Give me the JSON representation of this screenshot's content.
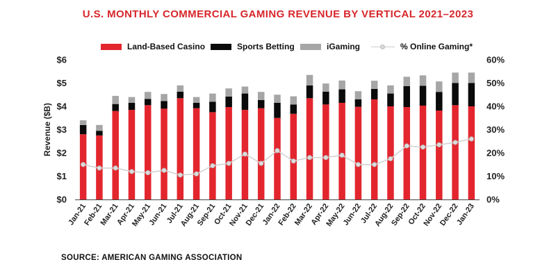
{
  "title": "U.S. MONTHLY COMMERCIAL GAMING REVENUE BY VERTICAL 2021–2023",
  "source": "SOURCE: AMERICAN GAMING ASSOCIATION",
  "colors": {
    "land_based": "#e3262e",
    "sports_betting": "#0a0a0a",
    "igaming": "#a6a6a6",
    "online_line": "#d3d3d3",
    "title": "#d7262b"
  },
  "chart_data": {
    "type": "bar",
    "stacked": true,
    "title": "U.S. MONTHLY COMMERCIAL GAMING REVENUE BY VERTICAL 2021–2023",
    "ylabel": "Revenue ($B)",
    "ylim": [
      0,
      6
    ],
    "y_ticks": [
      "$0",
      "$1",
      "$2",
      "$3",
      "$4",
      "$5",
      "$6"
    ],
    "y2lim": [
      0,
      60
    ],
    "y2_ticks": [
      "0%",
      "10%",
      "20%",
      "30%",
      "40%",
      "50%",
      "60%"
    ],
    "grid": false,
    "legend": "top",
    "categories": [
      "Jan-21",
      "Feb-21",
      "Mar-21",
      "Apr-21",
      "May-21",
      "Jun-21",
      "Jul-21",
      "Aug-21",
      "Sep-21",
      "Oct-21",
      "Nov-21",
      "Dec-21",
      "Jan-22",
      "Feb-22",
      "Mar-22",
      "Apr-22",
      "May-22",
      "Jun-22",
      "Jul-22",
      "Aug-22",
      "Sep-22",
      "Oct-22",
      "Nov-22",
      "Dec-22",
      "Jan-23"
    ],
    "series": [
      {
        "name": "Land-Based Casino",
        "kind": "bar",
        "values": [
          2.8,
          2.75,
          3.8,
          3.85,
          4.05,
          3.9,
          4.35,
          3.92,
          3.75,
          3.97,
          3.85,
          3.92,
          3.5,
          3.68,
          4.35,
          4.08,
          4.15,
          3.98,
          4.3,
          4.0,
          3.97,
          4.03,
          3.82,
          4.05,
          4.0
        ]
      },
      {
        "name": "Sports Betting",
        "kind": "bar",
        "values": [
          0.4,
          0.2,
          0.3,
          0.3,
          0.27,
          0.33,
          0.28,
          0.23,
          0.45,
          0.45,
          0.7,
          0.35,
          0.65,
          0.4,
          0.55,
          0.55,
          0.58,
          0.32,
          0.45,
          0.55,
          0.9,
          0.85,
          0.8,
          0.95,
          1.0
        ]
      },
      {
        "name": "iGaming",
        "kind": "bar",
        "values": [
          0.2,
          0.25,
          0.35,
          0.25,
          0.3,
          0.3,
          0.27,
          0.25,
          0.35,
          0.35,
          0.3,
          0.35,
          0.35,
          0.35,
          0.45,
          0.35,
          0.38,
          0.35,
          0.35,
          0.35,
          0.4,
          0.45,
          0.45,
          0.45,
          0.45
        ]
      },
      {
        "name": "% Online Gaming*",
        "kind": "line",
        "axis": "right",
        "values": [
          15,
          13.5,
          13.5,
          12,
          11.5,
          12.5,
          10.5,
          11,
          14.5,
          15.5,
          19.5,
          15.5,
          21,
          16.5,
          18,
          18,
          19,
          15,
          15,
          17.5,
          23,
          22.5,
          23.5,
          24.5,
          26
        ]
      }
    ]
  }
}
